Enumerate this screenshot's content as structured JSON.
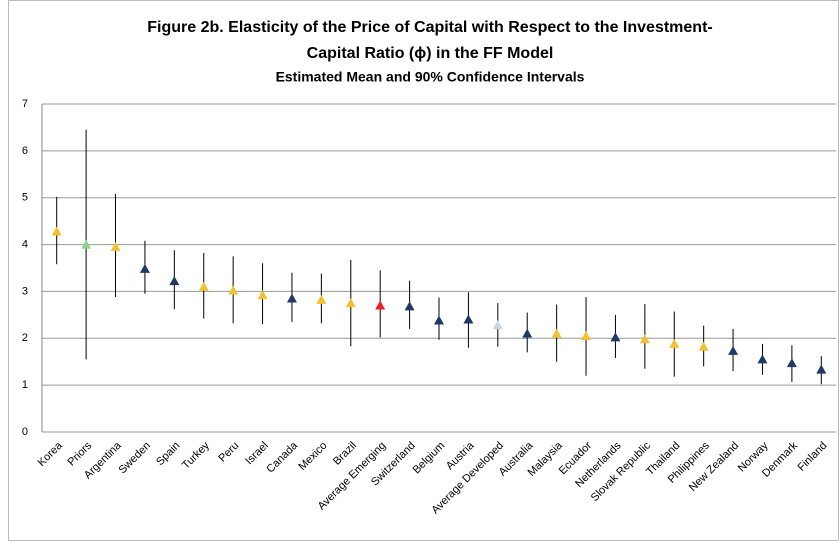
{
  "chart_data": {
    "type": "errorbar",
    "title": [
      "Figure 2b. Elasticity of the Price of Capital with Respect to the Investment-",
      "Capital Ratio (ϕ) in the FF Model"
    ],
    "subtitle": "Estimated Mean and 90% Confidence Intervals",
    "categories": [
      "Korea",
      "Priors",
      "Argentina",
      "Sweden",
      "Spain",
      "Turkey",
      "Peru",
      "Israel",
      "Canada",
      "Mexico",
      "Brazil",
      "Average Emerging",
      "Switzerland",
      "Belgium",
      "Austria",
      "Average Developed",
      "Australia",
      "Malaysia",
      "Ecuador",
      "Netherlands",
      "Slovak Republic",
      "Thailand",
      "Philippines",
      "New Zealand",
      "Norway",
      "Denmark",
      "Finland"
    ],
    "values": [
      4.28,
      4.0,
      3.95,
      3.48,
      3.22,
      3.1,
      3.02,
      2.92,
      2.85,
      2.82,
      2.75,
      2.7,
      2.68,
      2.38,
      2.4,
      2.28,
      2.1,
      2.1,
      2.05,
      2.02,
      1.98,
      1.88,
      1.82,
      1.73,
      1.55,
      1.47,
      1.33
    ],
    "lower": [
      3.58,
      1.55,
      2.88,
      2.95,
      2.62,
      2.42,
      2.32,
      2.3,
      2.35,
      2.32,
      1.83,
      2.02,
      2.2,
      1.97,
      1.8,
      1.82,
      1.7,
      1.5,
      1.2,
      1.58,
      1.35,
      1.18,
      1.4,
      1.3,
      1.22,
      1.07,
      1.02
    ],
    "upper": [
      5.02,
      6.45,
      5.08,
      4.08,
      3.88,
      3.82,
      3.75,
      3.6,
      3.4,
      3.38,
      3.67,
      3.45,
      3.23,
      2.87,
      2.98,
      2.75,
      2.55,
      2.72,
      2.88,
      2.5,
      2.73,
      2.57,
      2.27,
      2.2,
      1.88,
      1.85,
      1.62
    ],
    "colors": [
      "#f2c12e",
      "#8fd18f",
      "#f2c12e",
      "#1f3864",
      "#1f3864",
      "#f2c12e",
      "#f2c12e",
      "#f2c12e",
      "#1f3864",
      "#f2c12e",
      "#f2c12e",
      "#e8202a",
      "#1f3864",
      "#1f3864",
      "#1f3864",
      "#c9d3ec",
      "#1f3864",
      "#f2c12e",
      "#f2c12e",
      "#1f3864",
      "#f2c12e",
      "#f2c12e",
      "#f2c12e",
      "#1f3864",
      "#1f3864",
      "#1f3864",
      "#1f3864"
    ],
    "ylim": [
      0,
      7
    ],
    "yticks": [
      0,
      1,
      2,
      3,
      4,
      5,
      6,
      7
    ],
    "grid": true
  }
}
